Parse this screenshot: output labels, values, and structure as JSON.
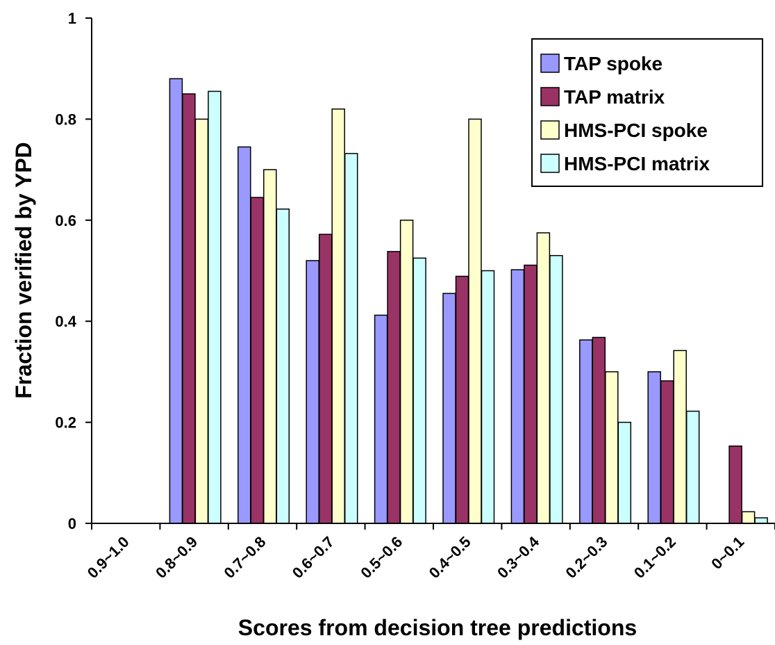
{
  "chart_data": {
    "type": "bar",
    "categories": [
      "0.9~1.0",
      "0.8~0.9",
      "0.7~0.8",
      "0.6~0.7",
      "0.5~0.6",
      "0.4~0.5",
      "0.3~0.4",
      "0.2~0.3",
      "0.1~0.2",
      "0~0.1"
    ],
    "series": [
      {
        "name": "TAP spoke",
        "color": "#9999ff",
        "values": [
          null,
          0.88,
          0.745,
          0.52,
          0.412,
          0.455,
          0.502,
          0.363,
          0.3,
          null
        ]
      },
      {
        "name": "TAP matrix",
        "color": "#993366",
        "values": [
          null,
          0.85,
          0.645,
          0.572,
          0.538,
          0.489,
          0.511,
          0.368,
          0.282,
          0.153
        ]
      },
      {
        "name": "HMS-PCI spoke",
        "color": "#ffffcc",
        "values": [
          null,
          0.8,
          0.7,
          0.82,
          0.6,
          0.8,
          0.575,
          0.3,
          0.342,
          0.023
        ]
      },
      {
        "name": "HMS-PCI matrix",
        "color": "#ccffff",
        "values": [
          null,
          0.855,
          0.622,
          0.732,
          0.525,
          0.5,
          0.53,
          0.2,
          0.222,
          0.011
        ]
      }
    ],
    "xlabel": "Scores from decision tree predictions",
    "ylabel": "Fraction verified by YPD",
    "ylim": [
      0,
      1
    ],
    "yticks": [
      "0",
      "0.2",
      "0.4",
      "0.6",
      "0.8",
      "1"
    ],
    "grid": false,
    "legend": "top-right"
  }
}
